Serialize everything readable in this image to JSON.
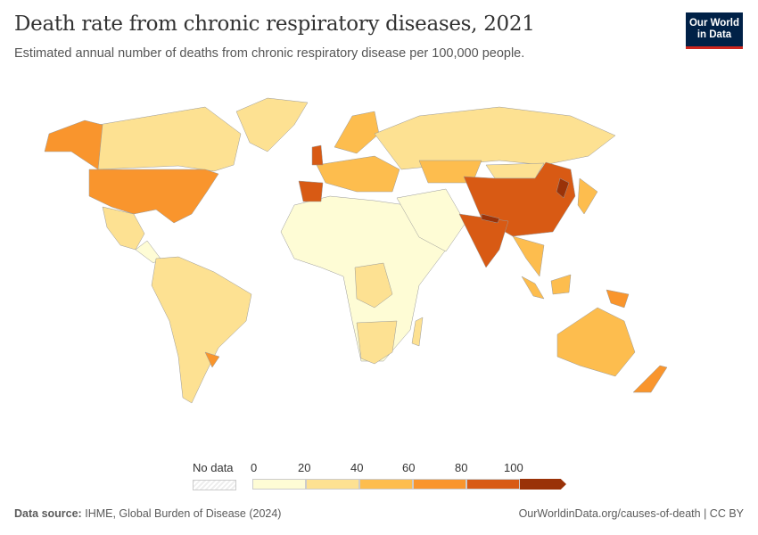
{
  "header": {
    "title": "Death rate from chronic respiratory diseases, 2021",
    "subtitle": "Estimated annual number of deaths from chronic respiratory disease per 100,000 people.",
    "logo_line1": "Our World",
    "logo_line2": "in Data"
  },
  "legend": {
    "no_data_label": "No data",
    "ticks": [
      "0",
      "20",
      "40",
      "60",
      "80",
      "100"
    ],
    "colors": [
      "#fefcd5",
      "#fde192",
      "#fdbd4e",
      "#f9952d",
      "#d85a14",
      "#9a3208"
    ]
  },
  "footer": {
    "source_label": "Data source:",
    "source": "IHME, Global Burden of Disease (2024)",
    "link": "OurWorldinData.org/causes-of-death | CC BY"
  }
}
